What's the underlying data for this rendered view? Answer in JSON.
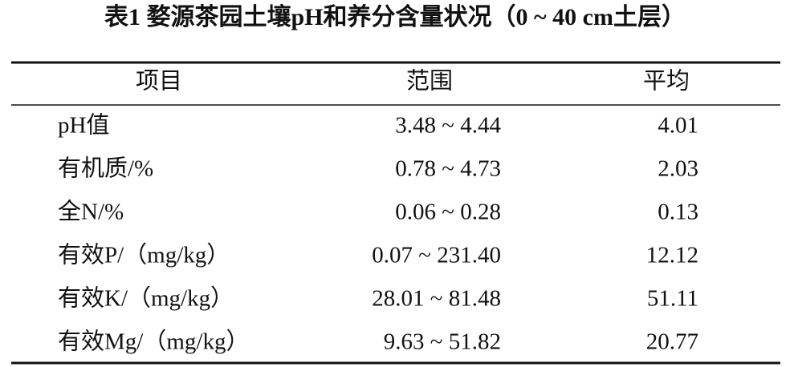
{
  "title": "表1 婺源茶园土壤pH和养分含量状况（0 ~ 40 cm土层）",
  "table": {
    "header": [
      "项目",
      "范围",
      "平均"
    ],
    "rows": [
      [
        "pH值",
        "3.48 ~ 4.44",
        "4.01"
      ],
      [
        "有机质/%",
        "0.78 ~ 4.73",
        "2.03"
      ],
      [
        "全N/%",
        "0.06 ~ 0.28",
        "0.13"
      ],
      [
        "有效P/（mg/kg）",
        "0.07 ~ 231.40",
        "12.12"
      ],
      [
        "有效K/（mg/kg）",
        "28.01 ~ 81.48",
        "51.11"
      ],
      [
        "有效Mg/（mg/kg）",
        "9.63 ~ 51.82",
        "20.77"
      ]
    ]
  }
}
